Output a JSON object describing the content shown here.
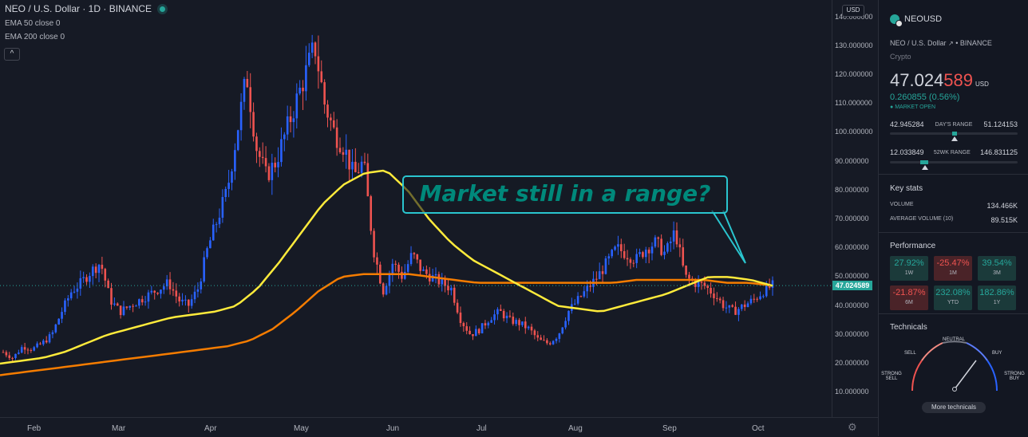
{
  "legend": {
    "title": "NEO / U.S. Dollar · 1D · BINANCE",
    "ind1": "EMA 50 close 0",
    "ind2": "EMA 200 close 0",
    "collapse": "^"
  },
  "price_axis": {
    "currency_button": "USD",
    "ticks": [
      "140.000000",
      "130.000000",
      "120.000000",
      "110.000000",
      "100.000000",
      "90.000000",
      "80.000000",
      "70.000000",
      "60.000000",
      "50.000000",
      "40.000000",
      "30.000000",
      "20.000000",
      "10.000000"
    ],
    "last_price_tag": "47.024589"
  },
  "time_axis": {
    "ticks": [
      "Feb",
      "Mar",
      "Apr",
      "May",
      "Jun",
      "Jul",
      "Aug",
      "Sep",
      "Oct"
    ]
  },
  "callout": {
    "text": "Market still in a range?"
  },
  "colors": {
    "up": "#2962ff",
    "down": "#ef5350",
    "ema50": "#ffeb3b",
    "ema200": "#f57c00",
    "accent": "#26a69a"
  },
  "chart_data": {
    "type": "candlestick",
    "symbol": "NEO / U.S. Dollar",
    "interval": "1D",
    "exchange": "BINANCE",
    "ylim": [
      0,
      145
    ],
    "x_labels": [
      "Feb",
      "Mar",
      "Apr",
      "May",
      "Jun",
      "Jul",
      "Aug",
      "Sep",
      "Oct"
    ],
    "close_approx": [
      24,
      22,
      26,
      25,
      27,
      30,
      38,
      45,
      48,
      52,
      55,
      42,
      38,
      40,
      42,
      44,
      46,
      48,
      42,
      40,
      46,
      60,
      70,
      80,
      100,
      120,
      95,
      85,
      90,
      100,
      110,
      120,
      130,
      110,
      100,
      95,
      85,
      90,
      60,
      45,
      55,
      50,
      58,
      52,
      50,
      48,
      46,
      35,
      30,
      32,
      36,
      38,
      35,
      34,
      32,
      28,
      27,
      30,
      38,
      42,
      46,
      50,
      55,
      60,
      58,
      56,
      60,
      62,
      58,
      66,
      50,
      48,
      47,
      44,
      40,
      38,
      40,
      42,
      45,
      47.02
    ],
    "ema50_approx": [
      20,
      21,
      22,
      24,
      27,
      30,
      32,
      34,
      36,
      37,
      38,
      40,
      46,
      55,
      65,
      75,
      82,
      86,
      87,
      80,
      70,
      62,
      56,
      52,
      48,
      44,
      40,
      39,
      38,
      40,
      42,
      44,
      47,
      50,
      50,
      49,
      47
    ],
    "ema200_approx": [
      16,
      17,
      18,
      19,
      20,
      21,
      22,
      23,
      24,
      25,
      26,
      28,
      32,
      38,
      45,
      50,
      51,
      51,
      51,
      50,
      49,
      48,
      48,
      48,
      48,
      48,
      48,
      48,
      49,
      49,
      49,
      49,
      48,
      48,
      47
    ],
    "last_price": 47.024589
  },
  "sidebar": {
    "symbol": "NEOUSD",
    "full_name": "NEO / U.S. Dollar",
    "exchange": "BINANCE",
    "type": "Crypto",
    "price_main": "47.024",
    "price_hl": "589",
    "currency": "USD",
    "change": "0.260855 (0.56%)",
    "status": "MARKET OPEN",
    "day_low": "42.945284",
    "day_label": "DAY'S RANGE",
    "day_high": "51.124153",
    "wk_low": "12.033849",
    "wk_label": "52WK RANGE",
    "wk_high": "146.831125",
    "day_position": 0.5,
    "wk_position": 0.26,
    "key_stats_title": "Key stats",
    "volume_label": "VOLUME",
    "volume": "134.466K",
    "avg_volume_label": "AVERAGE VOLUME (10)",
    "avg_volume": "89.515K",
    "performance_title": "Performance",
    "performance": [
      {
        "value": "27.92%",
        "period": "1W",
        "dir": "up"
      },
      {
        "value": "-25.47%",
        "period": "1M",
        "dir": "dn"
      },
      {
        "value": "39.54%",
        "period": "3M",
        "dir": "up"
      },
      {
        "value": "-21.87%",
        "period": "6M",
        "dir": "dn"
      },
      {
        "value": "232.08%",
        "period": "YTD",
        "dir": "up"
      },
      {
        "value": "182.86%",
        "period": "1Y",
        "dir": "up"
      }
    ],
    "technicals_title": "Technicals",
    "gauge": {
      "neutral": "NEUTRAL",
      "sell": "SELL",
      "buy": "BUY",
      "strong_sell": "STRONG SELL",
      "strong_buy": "STRONG BUY"
    },
    "more_button": "More technicals"
  }
}
